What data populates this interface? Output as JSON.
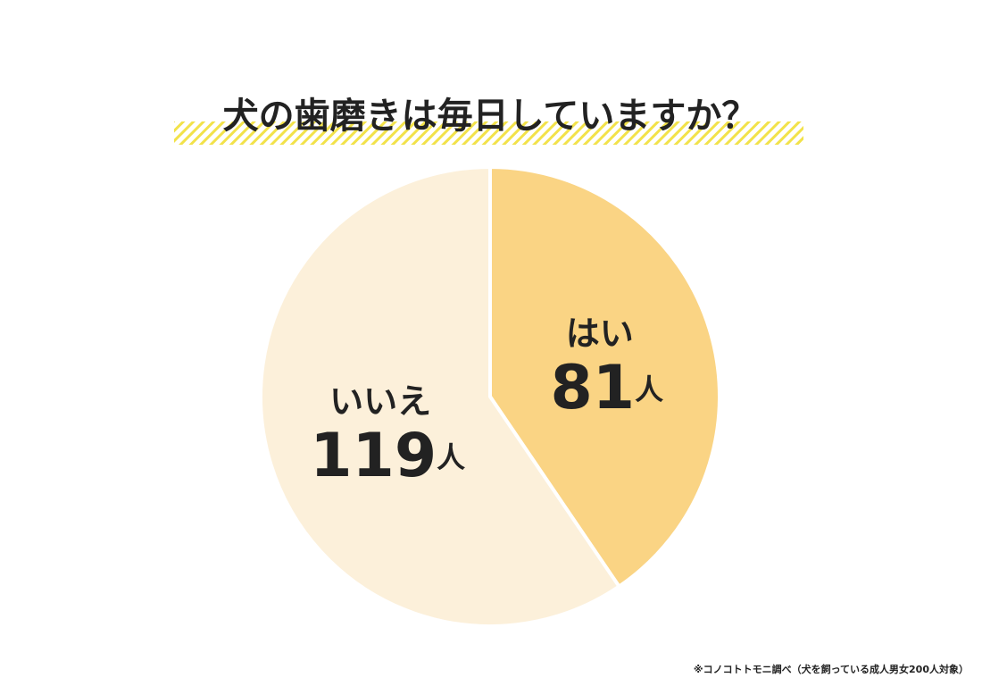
{
  "chart_data": {
    "type": "pie",
    "title": "犬の歯磨きは毎日していますか？",
    "categories": [
      "はい",
      "いいえ"
    ],
    "values": [
      81,
      119
    ],
    "value_labels": [
      "81人",
      "119人"
    ],
    "colors": [
      "#fad484",
      "#fcf0da"
    ],
    "note": "※コノコトトモニ調べ（犬を飼っている成人男女200人対象）"
  }
}
